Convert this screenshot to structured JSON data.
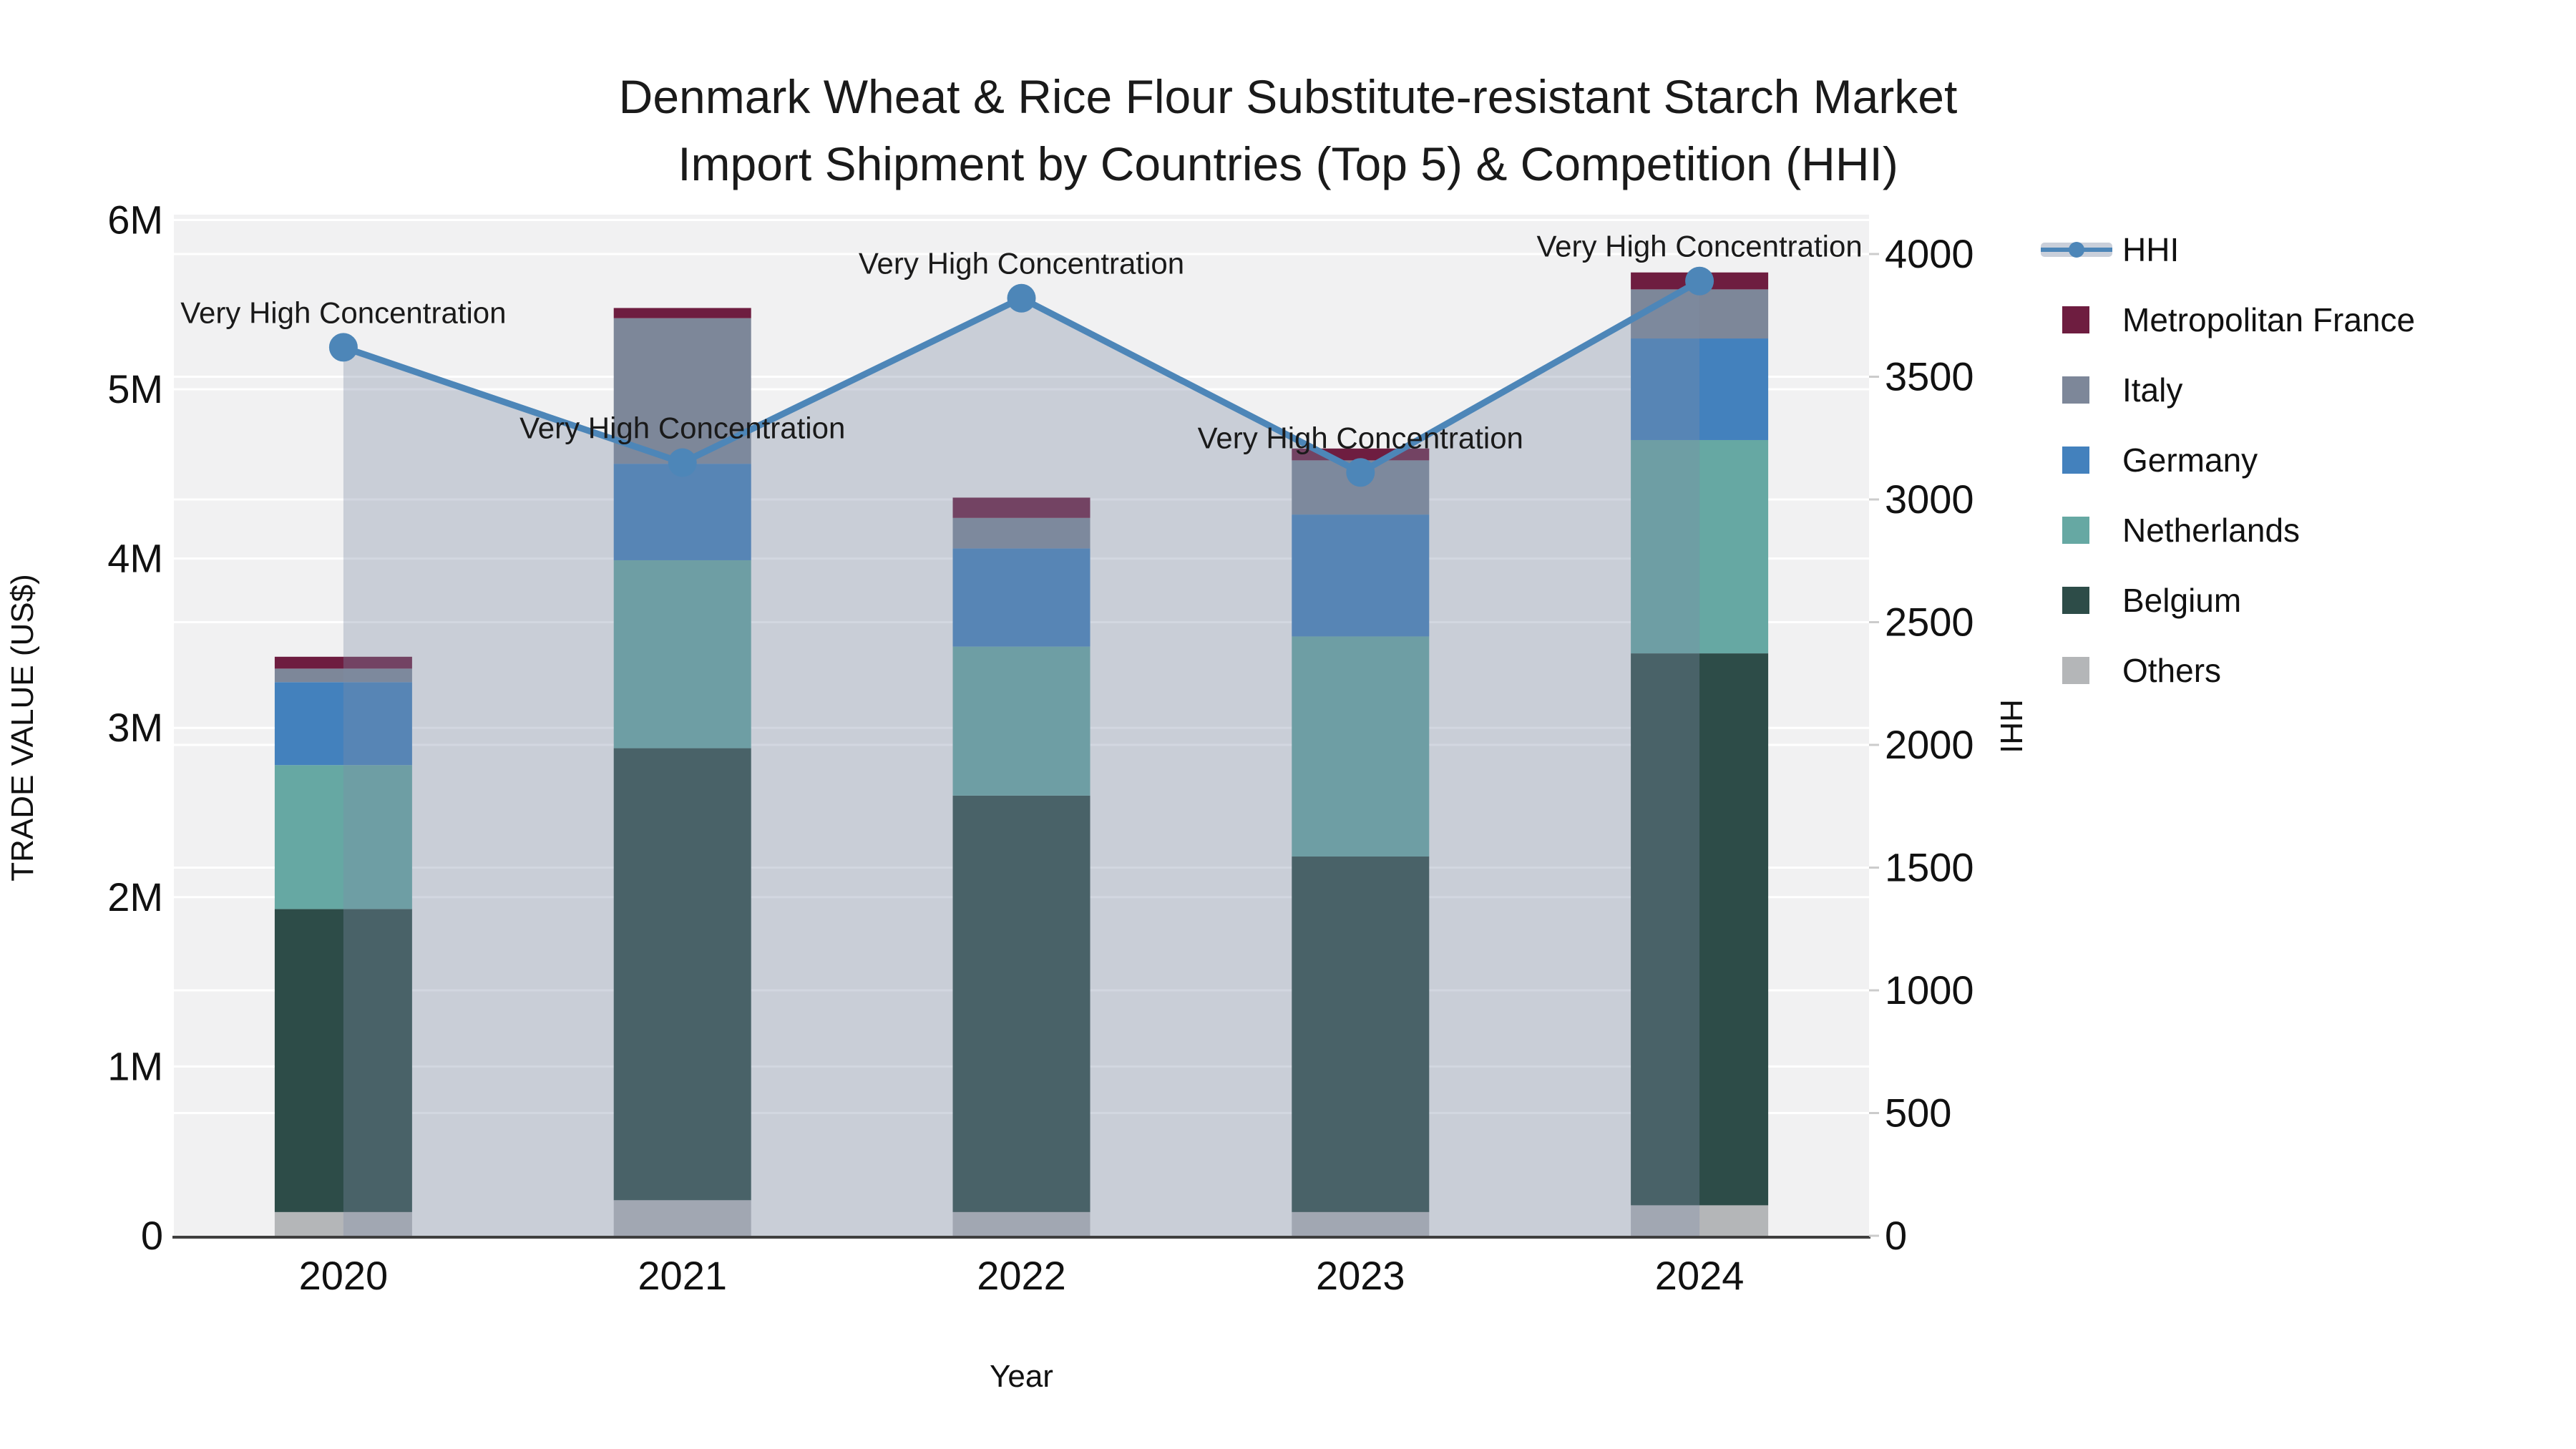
{
  "title": {
    "line1": "Denmark Wheat & Rice Flour Substitute-resistant Starch Market",
    "line2": "Import Shipment by Countries (Top 5) & Competition (HHI)"
  },
  "chart_data": {
    "type": "bar-stacked+line",
    "categories": [
      "2020",
      "2021",
      "2022",
      "2023",
      "2024"
    ],
    "series": [
      {
        "name": "Others",
        "color": "#b4b6b8",
        "values": [
          140000,
          210000,
          140000,
          140000,
          180000
        ]
      },
      {
        "name": "Belgium",
        "color": "#2d4c48",
        "values": [
          1790000,
          2670000,
          2460000,
          2100000,
          3260000
        ]
      },
      {
        "name": "Netherlands",
        "color": "#66a8a3",
        "values": [
          850000,
          1110000,
          880000,
          1300000,
          1260000
        ]
      },
      {
        "name": "Germany",
        "color": "#4381bd",
        "values": [
          490000,
          570000,
          580000,
          720000,
          600000
        ]
      },
      {
        "name": "Italy",
        "color": "#7d8799",
        "values": [
          80000,
          860000,
          180000,
          320000,
          290000
        ]
      },
      {
        "name": "Metropolitan France",
        "color": "#6e1d40",
        "values": [
          70000,
          60000,
          120000,
          70000,
          100000
        ]
      }
    ],
    "line_series": {
      "name": "HHI",
      "values": [
        3620,
        3150,
        3820,
        3110,
        3890
      ],
      "color": "#4d86b8",
      "area_color": "rgba(125,140,165,0.35)"
    },
    "annotations": [
      {
        "category": "2020",
        "text": "Very High Concentration"
      },
      {
        "category": "2021",
        "text": "Very High Concentration"
      },
      {
        "category": "2022",
        "text": "Very High Concentration"
      },
      {
        "category": "2023",
        "text": "Very High Concentration"
      },
      {
        "category": "2024",
        "text": "Very High Concentration"
      }
    ],
    "y_left": {
      "label": "TRADE VALUE (US$)",
      "max": 6000000,
      "tick_step": 1000000,
      "tick_labels": [
        "0",
        "1M",
        "2M",
        "3M",
        "4M",
        "5M",
        "6M"
      ]
    },
    "y_right": {
      "label": "HHI",
      "max": 4000,
      "tick_step": 500,
      "tick_labels": [
        "0",
        "500",
        "1000",
        "1500",
        "2000",
        "2500",
        "3000",
        "3500",
        "4000"
      ]
    },
    "x_label": "Year",
    "plot_bg": "#f1f1f2",
    "grid_color": "#ffffff",
    "axis_line_color": "#3f3f3f",
    "tick_text_color": "#111111",
    "annotation_text_color": "#1a1a1a"
  },
  "legend": {
    "items": [
      {
        "label": "HHI",
        "type": "line",
        "color": "#4d86b8"
      },
      {
        "label": "Metropolitan France",
        "type": "box",
        "color": "#6e1d40"
      },
      {
        "label": "Italy",
        "type": "box",
        "color": "#7d8799"
      },
      {
        "label": "Germany",
        "type": "box",
        "color": "#4381bd"
      },
      {
        "label": "Netherlands",
        "type": "box",
        "color": "#66a8a3"
      },
      {
        "label": "Belgium",
        "type": "box",
        "color": "#2d4c48"
      },
      {
        "label": "Others",
        "type": "box",
        "color": "#b4b6b8"
      }
    ]
  }
}
